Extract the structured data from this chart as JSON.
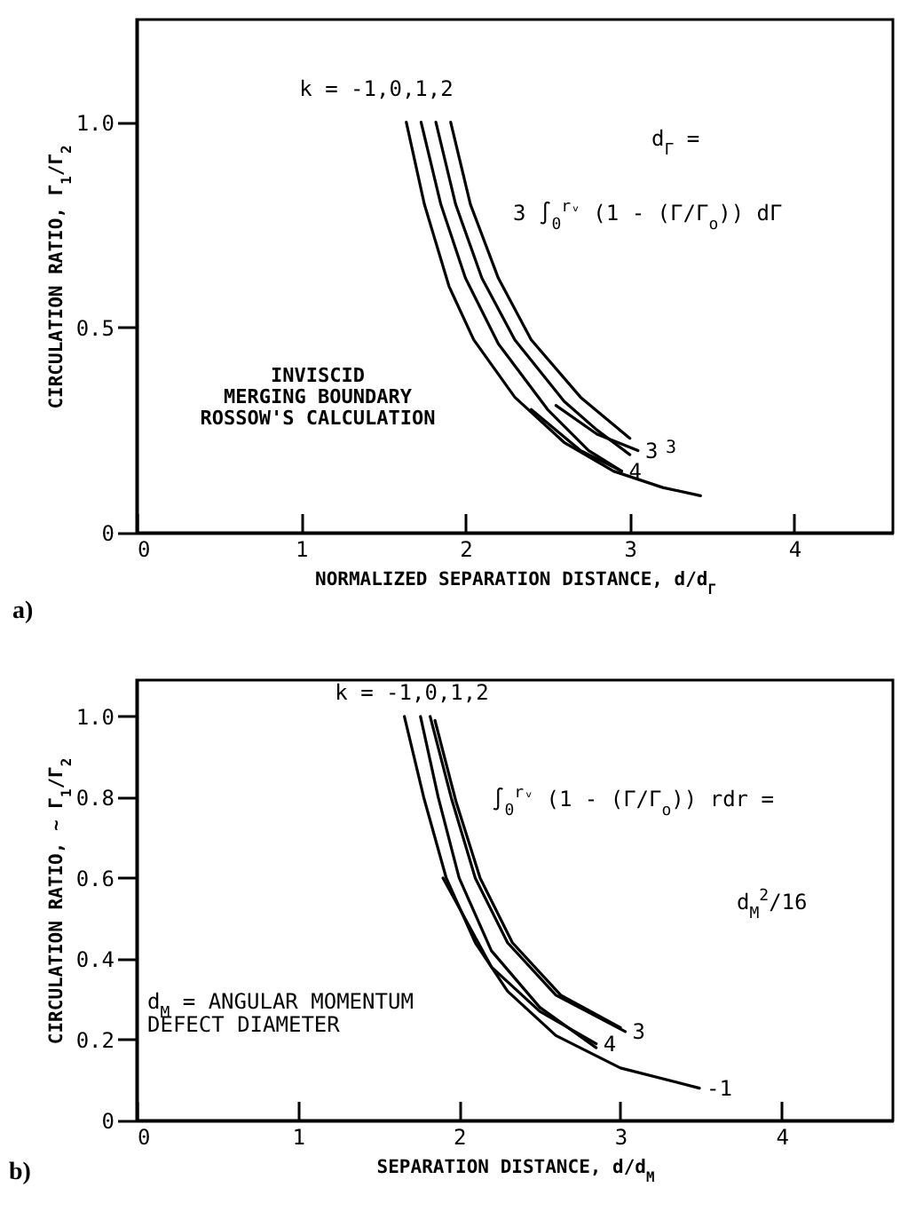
{
  "chart_data": [
    {
      "type": "line",
      "xlabel": "NORMALIZED SEPARATION DISTANCE, d/d$_{Γ}$",
      "ylabel": "CIRCULATION RATIO, Γ$_{1}$/Γ$_{2}$",
      "xlim": [
        0,
        4.6
      ],
      "ylim": [
        0,
        1.25
      ],
      "xticks": [
        0,
        1,
        2,
        3,
        4
      ],
      "yticks": [
        0,
        0.5,
        {
          "value": 1,
          "label": "1.0"
        }
      ],
      "series": [
        {
          "color": "#000000",
          "x": [
            1.64,
            1.75,
            1.9,
            2.05,
            2.3,
            2.6,
            2.9,
            3.2,
            3.43
          ],
          "values": [
            1.0,
            0.8,
            0.6,
            0.47,
            0.33,
            0.22,
            0.15,
            0.11,
            0.09
          ]
        },
        {
          "color": "#000000",
          "x": [
            1.73,
            1.85,
            2.0,
            2.2,
            2.5,
            2.75,
            2.95
          ],
          "values": [
            1.0,
            0.8,
            0.62,
            0.46,
            0.3,
            0.2,
            0.15
          ]
        },
        {
          "color": "#000000",
          "x": [
            1.82,
            1.94,
            2.1,
            2.3,
            2.6,
            2.8,
            3.0
          ],
          "values": [
            1.0,
            0.8,
            0.62,
            0.47,
            0.32,
            0.25,
            0.19
          ]
        },
        {
          "color": "#000000",
          "x": [
            1.91,
            2.03,
            2.2,
            2.4,
            2.7,
            3.0
          ],
          "values": [
            1.0,
            0.8,
            0.62,
            0.47,
            0.33,
            0.23
          ]
        },
        {
          "color": "#000000",
          "x": [
            2.55,
            2.8,
            3.05
          ],
          "values": [
            0.31,
            0.24,
            0.2
          ]
        },
        {
          "color": "#000000",
          "x": [
            2.4,
            2.7,
            2.95
          ],
          "values": [
            0.3,
            0.2,
            0.15
          ]
        }
      ],
      "annotations": [
        {
          "text": "3",
          "x": 3.05,
          "y": 0.2
        },
        {
          "text": "4",
          "x": 2.95,
          "y": 0.15
        },
        "k = -1,0,1,2",
        "3",
        "d$_{Γ}$ =",
        "3  ∫$_{0}$$^{rᵥ}$ (1 - (Γ/Γ$_{o}$)) dΓ",
        "INVISCID\nMERGING BOUNDARY\nROSSOW'S CALCULATION",
        "a)"
      ]
    },
    {
      "type": "line",
      "xlabel": "SEPARATION DISTANCE, d/d$_{M}$",
      "ylabel": "CIRCULATION RATIO, ~ Γ$_{1}$/Γ$_{2}$",
      "xlim": [
        0,
        4.69
      ],
      "ylim": [
        0,
        1.09
      ],
      "xticks": [
        0,
        1,
        2,
        3,
        4
      ],
      "yticks": [
        0,
        0.2,
        0.4,
        0.6,
        0.8,
        {
          "value": 1,
          "label": "1.0"
        }
      ],
      "series": [
        {
          "color": "#000000",
          "x": [
            1.66,
            1.78,
            1.92,
            2.1,
            2.3,
            2.6,
            3.0,
            3.49
          ],
          "values": [
            1.0,
            0.8,
            0.6,
            0.44,
            0.32,
            0.21,
            0.13,
            0.08
          ]
        },
        {
          "color": "#000000",
          "x": [
            1.76,
            1.87,
            2.0,
            2.2,
            2.5,
            2.85
          ],
          "values": [
            1.0,
            0.8,
            0.6,
            0.42,
            0.28,
            0.18
          ]
        },
        {
          "color": "#000000",
          "x": [
            1.82,
            1.95,
            2.1,
            2.3,
            2.6,
            3.03
          ],
          "values": [
            1.0,
            0.8,
            0.6,
            0.44,
            0.31,
            0.22
          ]
        },
        {
          "color": "#000000",
          "x": [
            1.85,
            1.98,
            2.13,
            2.33,
            2.63,
            3.0
          ],
          "values": [
            0.99,
            0.79,
            0.6,
            0.44,
            0.31,
            0.23
          ]
        },
        {
          "color": "#000000",
          "x": [
            1.9,
            2.2,
            2.5,
            2.85
          ],
          "values": [
            0.6,
            0.38,
            0.27,
            0.19
          ]
        }
      ],
      "annotations": [
        {
          "text": "3",
          "x": 3.03,
          "y": 0.22
        },
        {
          "text": "4",
          "x": 2.85,
          "y": 0.19
        },
        {
          "text": "-1",
          "x": 3.49,
          "y": 0.08
        },
        "k = -1,0,1,2",
        "∫$_{0}$$^{rᵥ}$ (1 - (Γ/Γ$_{o}$)) rdr =",
        "d$_{M}$$^{2}$/16",
        "d$_{M}$ = ANGULAR MOMENTUM\nDEFECT DIAMETER",
        "b)"
      ]
    }
  ]
}
